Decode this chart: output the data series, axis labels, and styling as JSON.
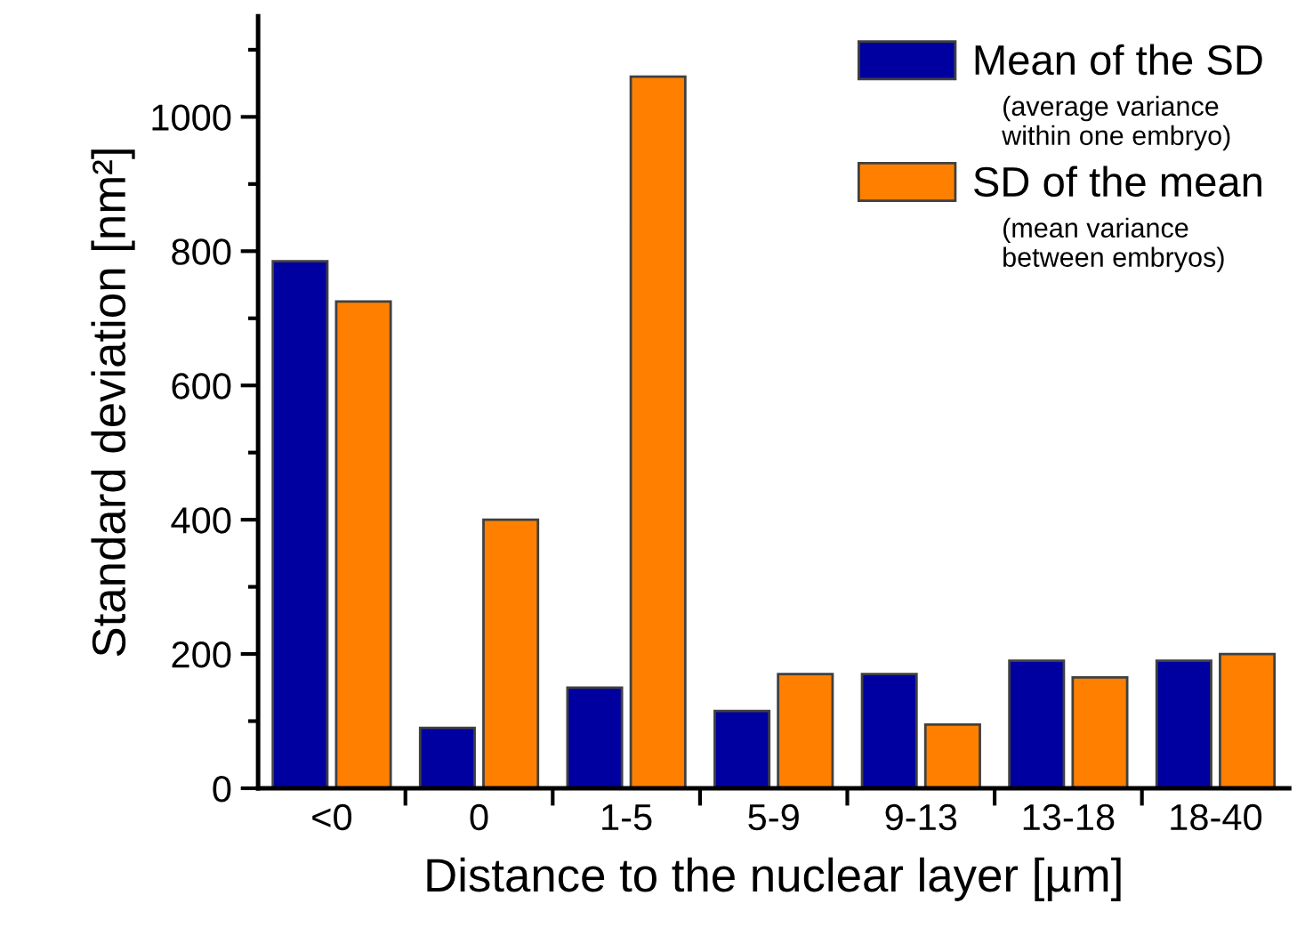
{
  "chart_data": {
    "type": "bar",
    "xlabel": "Distance to the nuclear layer [µm]",
    "ylabel": "Standard deviation [nm²]",
    "categories": [
      "<0",
      "0",
      "1-5",
      "5-9",
      "9-13",
      "13-18",
      "18-40"
    ],
    "series": [
      {
        "name": "Mean of the SD",
        "color": "#0000a0",
        "values": [
          785,
          90,
          150,
          115,
          170,
          190,
          190
        ]
      },
      {
        "name": "SD of the mean",
        "color": "#ff8000",
        "values": [
          725,
          400,
          1060,
          170,
          95,
          165,
          200
        ]
      }
    ],
    "annotations": [
      "(average variance\nwithin one embryo)",
      "(mean variance\nbetween embryos)"
    ],
    "ylim": [
      0,
      1150
    ],
    "yticks": [
      0,
      {
        "value": 100,
        "label": null
      },
      200,
      {
        "value": 300,
        "label": null
      },
      400,
      {
        "value": 500,
        "label": null
      },
      600,
      {
        "value": 700,
        "label": null
      },
      800,
      {
        "value": 900,
        "label": null
      },
      1000,
      {
        "value": 1100,
        "label": null
      }
    ],
    "grid": false,
    "legend": "top right"
  }
}
